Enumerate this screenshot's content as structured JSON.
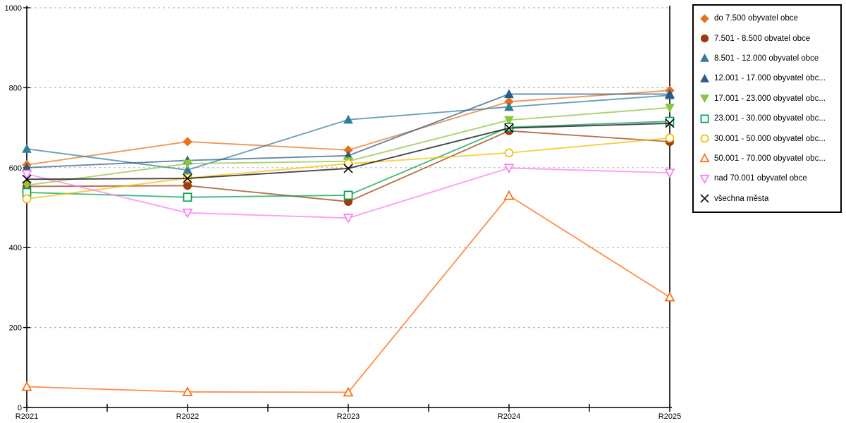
{
  "chart_data": {
    "type": "line",
    "title": "",
    "categories": [
      "R2021",
      "R2022",
      "R2023",
      "R2024",
      "R2025"
    ],
    "ylim": [
      0,
      1000
    ],
    "yticks": [
      0,
      200,
      400,
      600,
      800,
      1000
    ],
    "grid": "horizontal-dashed",
    "legend_position": "right-outside-boxed",
    "series": [
      {
        "name": "do 7.500 obyvatel obce",
        "marker": "diamond",
        "fill": "filled",
        "color": "#E8721C",
        "values": [
          607,
          665,
          644,
          765,
          793
        ]
      },
      {
        "name": "7.501 - 8.500 obvatel obce",
        "marker": "circle",
        "fill": "filled",
        "color": "#9C3D10",
        "values": [
          553,
          555,
          515,
          692,
          665
        ]
      },
      {
        "name": "8.501 - 12.000 obyvatel obce",
        "marker": "triangle-up",
        "fill": "filled",
        "color": "#2F7E9B",
        "values": [
          647,
          594,
          720,
          752,
          781
        ]
      },
      {
        "name": "12.001 - 17.000 obyvatel obc...",
        "marker": "triangle-up",
        "fill": "filled",
        "color": "#2B5B88",
        "values": [
          600,
          618,
          630,
          784,
          784
        ]
      },
      {
        "name": "17.001 - 23.000 obyvatel obc...",
        "marker": "triangle-down",
        "fill": "filled",
        "color": "#8CC440",
        "values": [
          556,
          610,
          616,
          719,
          750
        ]
      },
      {
        "name": "23.001 - 30.000 obyvatel obc...",
        "marker": "square",
        "fill": "open",
        "color": "#00A050",
        "values": [
          538,
          526,
          531,
          701,
          716
        ]
      },
      {
        "name": "30.001 - 50.000 obyvatel obc...",
        "marker": "circle",
        "fill": "open",
        "color": "#F2BE00",
        "values": [
          522,
          574,
          610,
          637,
          674
        ]
      },
      {
        "name": "50.001 - 70.000 obyvatel obc...",
        "marker": "triangle-up",
        "fill": "open",
        "color": "#FA6B12",
        "values": [
          52,
          39,
          38,
          530,
          276
        ]
      },
      {
        "name": "nad 70.001 obyvatel obce",
        "marker": "triangle-down",
        "fill": "open",
        "color": "#FA7DF0",
        "values": [
          584,
          487,
          474,
          599,
          587
        ]
      },
      {
        "name": "všechna města",
        "marker": "x",
        "fill": "line",
        "color": "#000000",
        "values": [
          571,
          573,
          598,
          699,
          711
        ]
      }
    ]
  }
}
